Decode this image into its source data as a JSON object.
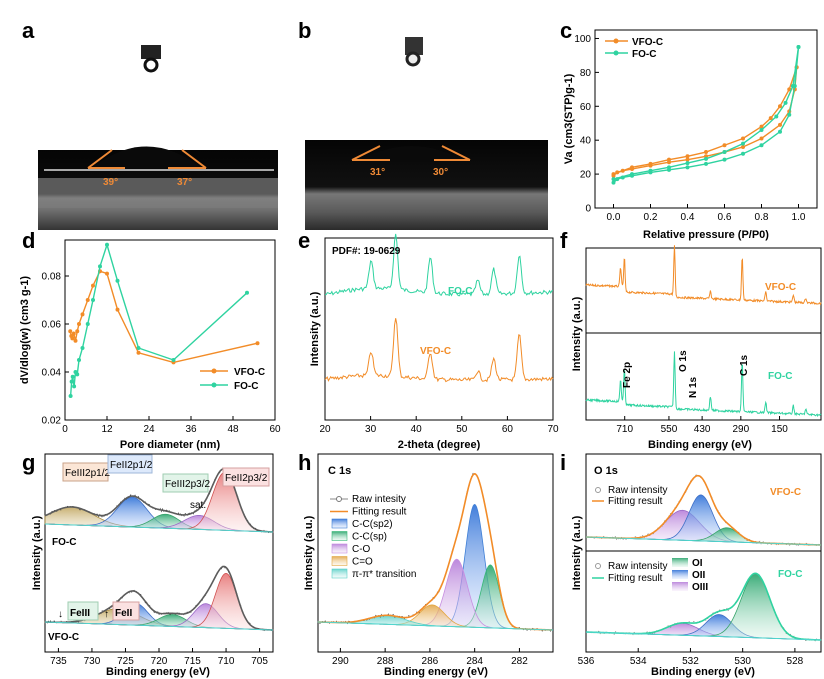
{
  "panel_labels": [
    "a",
    "b",
    "c",
    "d",
    "e",
    "f",
    "g",
    "h",
    "i"
  ],
  "photos": {
    "a": {
      "angles": [
        "39°",
        "37°"
      ]
    },
    "b": {
      "angles": [
        "31°",
        "30°"
      ]
    }
  },
  "colors": {
    "vfo": "#f28c28",
    "fo": "#2fd3a0",
    "angle": "#ef8a36"
  },
  "chart_data": [
    {
      "panel": "c",
      "type": "line",
      "xlabel": "Relative pressure (P/P0)",
      "ylabel": "Va (cm3(STP)g-1)",
      "xlim": [
        -0.1,
        1.1
      ],
      "ylim": [
        0,
        105
      ],
      "xticks": [
        0.0,
        0.2,
        0.4,
        0.6,
        0.8,
        1.0
      ],
      "yticks": [
        0,
        20,
        40,
        60,
        80,
        100
      ],
      "xtick_labels": [
        "0.0",
        "0.2",
        "0.4",
        "0.6",
        "0.8",
        "1.0"
      ],
      "ytick_labels": [
        "0",
        "20",
        "40",
        "60",
        "80",
        "100"
      ],
      "legend_placement": "top-left",
      "series": [
        {
          "name": "VFO-C",
          "color": "#f28c28",
          "adsorption": [
            [
              0.0,
              19
            ],
            [
              0.02,
              21
            ],
            [
              0.05,
              22
            ],
            [
              0.1,
              23
            ],
            [
              0.2,
              25
            ],
            [
              0.3,
              27
            ],
            [
              0.4,
              28.5
            ],
            [
              0.5,
              30.5
            ],
            [
              0.6,
              33
            ],
            [
              0.7,
              36
            ],
            [
              0.8,
              41
            ],
            [
              0.9,
              49
            ],
            [
              0.95,
              57
            ],
            [
              0.98,
              70
            ],
            [
              0.99,
              83
            ]
          ],
          "desorption": [
            [
              0.99,
              83
            ],
            [
              0.95,
              70
            ],
            [
              0.9,
              60
            ],
            [
              0.85,
              53
            ],
            [
              0.8,
              48
            ],
            [
              0.7,
              41
            ],
            [
              0.6,
              37
            ],
            [
              0.5,
              33
            ],
            [
              0.4,
              30.5
            ],
            [
              0.3,
              28.5
            ],
            [
              0.2,
              26
            ],
            [
              0.1,
              24
            ],
            [
              0.0,
              20
            ]
          ]
        },
        {
          "name": "FO-C",
          "color": "#2fd3a0",
          "adsorption": [
            [
              0.0,
              15
            ],
            [
              0.02,
              17
            ],
            [
              0.05,
              18
            ],
            [
              0.1,
              19
            ],
            [
              0.2,
              21
            ],
            [
              0.3,
              22.5
            ],
            [
              0.4,
              24
            ],
            [
              0.5,
              26
            ],
            [
              0.6,
              28.5
            ],
            [
              0.7,
              32
            ],
            [
              0.8,
              37
            ],
            [
              0.9,
              45
            ],
            [
              0.95,
              55
            ],
            [
              0.98,
              72
            ],
            [
              1.0,
              95
            ]
          ],
          "desorption": [
            [
              1.0,
              95
            ],
            [
              0.97,
              72
            ],
            [
              0.93,
              62
            ],
            [
              0.88,
              54
            ],
            [
              0.8,
              46
            ],
            [
              0.7,
              38
            ],
            [
              0.6,
              33
            ],
            [
              0.5,
              29
            ],
            [
              0.4,
              26.5
            ],
            [
              0.3,
              24
            ],
            [
              0.2,
              22
            ],
            [
              0.1,
              20
            ],
            [
              0.0,
              17
            ]
          ]
        }
      ]
    },
    {
      "panel": "d",
      "type": "line",
      "xlabel": "Pore diameter (nm)",
      "ylabel": "dV/dlog(w) (cm3 g-1)",
      "xlim": [
        0,
        60
      ],
      "ylim": [
        0.02,
        0.095
      ],
      "xticks": [
        0,
        12,
        24,
        36,
        48,
        60
      ],
      "yticks": [
        0.02,
        0.04,
        0.06,
        0.08
      ],
      "xtick_labels": [
        "0",
        "12",
        "24",
        "36",
        "48",
        "60"
      ],
      "ytick_labels": [
        "0.02",
        "0.04",
        "0.06",
        "0.08"
      ],
      "legend_placement": "bottom-right",
      "series": [
        {
          "name": "VFO-C",
          "color": "#f28c28",
          "points": [
            [
              1.5,
              0.057
            ],
            [
              1.8,
              0.055
            ],
            [
              2.1,
              0.054
            ],
            [
              2.5,
              0.056
            ],
            [
              3.0,
              0.053
            ],
            [
              3.5,
              0.057
            ],
            [
              4.0,
              0.06
            ],
            [
              5.0,
              0.064
            ],
            [
              6.5,
              0.07
            ],
            [
              8.0,
              0.076
            ],
            [
              10.0,
              0.082
            ],
            [
              12.0,
              0.081
            ],
            [
              15.0,
              0.066
            ],
            [
              21.0,
              0.048
            ],
            [
              31.0,
              0.044
            ],
            [
              55.0,
              0.052
            ]
          ]
        },
        {
          "name": "FO-C",
          "color": "#2fd3a0",
          "points": [
            [
              1.6,
              0.03
            ],
            [
              1.9,
              0.036
            ],
            [
              2.2,
              0.038
            ],
            [
              2.6,
              0.034
            ],
            [
              3.0,
              0.04
            ],
            [
              3.5,
              0.039
            ],
            [
              4.0,
              0.045
            ],
            [
              5.0,
              0.05
            ],
            [
              6.5,
              0.06
            ],
            [
              8.0,
              0.07
            ],
            [
              10.0,
              0.084
            ],
            [
              12.0,
              0.093
            ],
            [
              15.0,
              0.078
            ],
            [
              21.0,
              0.05
            ],
            [
              31.0,
              0.045
            ],
            [
              52.0,
              0.073
            ]
          ]
        }
      ]
    },
    {
      "panel": "e",
      "type": "line",
      "xlabel": "2-theta (degree)",
      "ylabel": "Intensity (a.u.)",
      "xlim": [
        20,
        70
      ],
      "xticks": [
        20,
        30,
        40,
        50,
        60,
        70
      ],
      "xtick_labels": [
        "20",
        "30",
        "40",
        "50",
        "60",
        "70"
      ],
      "annotation": "PDF#: 19-0629",
      "series": [
        {
          "name": "FO-C",
          "color": "#2fd3a0",
          "peaks": [
            [
              30.1,
              0.5
            ],
            [
              35.5,
              1.0
            ],
            [
              43.1,
              0.65
            ],
            [
              53.5,
              0.25
            ],
            [
              57.0,
              0.45
            ],
            [
              62.6,
              0.7
            ]
          ]
        },
        {
          "name": "VFO-C",
          "color": "#f28c28",
          "peaks": [
            [
              30.1,
              0.4
            ],
            [
              35.5,
              1.0
            ],
            [
              43.1,
              0.45
            ],
            [
              53.5,
              0.15
            ],
            [
              57.0,
              0.35
            ],
            [
              62.6,
              0.75
            ]
          ]
        }
      ]
    },
    {
      "panel": "f",
      "type": "line",
      "xlabel": "Binding energy (eV)",
      "ylabel": "Intensity (a.u.)",
      "xlim": [
        850,
        0
      ],
      "xticks": [
        710,
        550,
        430,
        290,
        150
      ],
      "xtick_labels": [
        "710",
        "550",
        "430",
        "290",
        "150"
      ],
      "peak_labels": [
        "Fe 2p",
        "O 1s",
        "N 1s",
        "C 1s"
      ],
      "series": [
        {
          "name": "VFO-C",
          "color": "#f28c28"
        },
        {
          "name": "FO-C",
          "color": "#2fd3a0"
        }
      ]
    },
    {
      "panel": "g",
      "type": "line",
      "xlabel": "Binding energy (eV)",
      "ylabel": "Intensity (a.u.)",
      "xlim": [
        737,
        703
      ],
      "xticks": [
        735,
        730,
        725,
        720,
        715,
        710,
        705
      ],
      "xtick_labels": [
        "735",
        "730",
        "725",
        "720",
        "715",
        "710",
        "705"
      ],
      "sample_labels": [
        "FO-C",
        "VFO-C"
      ],
      "peak_labels": [
        "FeIII2p1/2",
        "FeII2p1/2",
        "FeIII2p3/2",
        "sat.",
        "FeII2p3/2"
      ],
      "trend_labels": [
        "FeIII",
        "FeII"
      ]
    },
    {
      "panel": "h",
      "type": "line",
      "title": "C 1s",
      "xlabel": "Binding energy (eV)",
      "ylabel": "Intensity (a.u.)",
      "xlim": [
        291,
        280.5
      ],
      "xticks": [
        290,
        288,
        286,
        284,
        282
      ],
      "xtick_labels": [
        "290",
        "288",
        "286",
        "284",
        "282"
      ],
      "legend": [
        "Raw intesity",
        "Fitting result",
        "C-C(sp2)",
        "C-C(sp)",
        "C-O",
        "C=O",
        "π-π* transition"
      ],
      "components": [
        {
          "name": "C-C(sp2)",
          "center": 284.0,
          "height": 0.82,
          "color": "#3f7fd6"
        },
        {
          "name": "C-C(sp)",
          "center": 283.3,
          "height": 0.42,
          "color": "#37b877"
        },
        {
          "name": "C-O",
          "center": 284.8,
          "height": 0.45,
          "color": "#c78ee0"
        },
        {
          "name": "C=O",
          "center": 285.9,
          "height": 0.14,
          "color": "#e2a641"
        },
        {
          "name": "π-π* transition",
          "center": 287.9,
          "height": 0.06,
          "color": "#5bd1c7"
        }
      ]
    },
    {
      "panel": "i",
      "type": "line",
      "title": "O 1s",
      "xlabel": "Binding energy (eV)",
      "ylabel": "Intensity (a.u.)",
      "xlim": [
        536,
        527
      ],
      "xticks": [
        536,
        534,
        532,
        530,
        528
      ],
      "xtick_labels": [
        "536",
        "534",
        "532",
        "530",
        "528"
      ],
      "legend_top": [
        "Raw intensity",
        "Fitting result"
      ],
      "legend_bottom": [
        "Raw intensity",
        "Fitting result",
        "OI",
        "OII",
        "OIII"
      ],
      "sample_labels": [
        "VFO-C",
        "FO-C"
      ]
    }
  ]
}
